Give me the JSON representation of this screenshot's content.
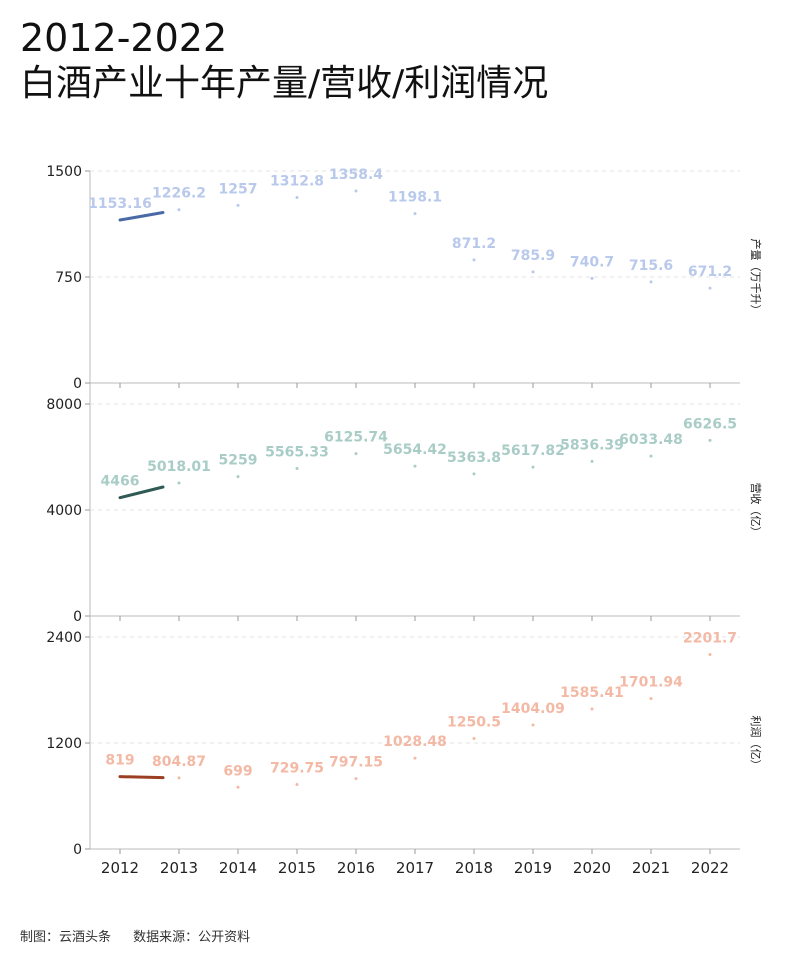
{
  "title": {
    "line1": "2012-2022",
    "line2": "白酒产业十年产量/营收/利润情况"
  },
  "footer": {
    "credit": "制图：云酒头条",
    "source": "数据来源：公开资料"
  },
  "chart_data": [
    {
      "type": "line",
      "ylabel": "产量（万千升）",
      "ylim": [
        0,
        1500
      ],
      "yticks": [
        "0",
        "750",
        "1500"
      ],
      "x": [
        "2012",
        "2013",
        "2014",
        "2015",
        "2016",
        "2017",
        "2018",
        "2019",
        "2020",
        "2021",
        "2022"
      ],
      "values": [
        1153.16,
        1226.2,
        1257,
        1312.8,
        1358.4,
        1198.1,
        871.2,
        785.9,
        740.7,
        715.6,
        671.2
      ],
      "labels": [
        "1153.16",
        "1226.2",
        "1257",
        "1312.8",
        "1358.4",
        "1198.1",
        "871.2",
        "785.9",
        "740.7",
        "715.6",
        "671.2"
      ],
      "line_color": "#4a6aa5",
      "label_color": "#b9c9ec",
      "grid": true
    },
    {
      "type": "line",
      "ylabel": "营收（亿）",
      "ylim": [
        0,
        8000
      ],
      "yticks": [
        "0",
        "4000",
        "8000"
      ],
      "x": [
        "2012",
        "2013",
        "2014",
        "2015",
        "2016",
        "2017",
        "2018",
        "2019",
        "2020",
        "2021",
        "2022"
      ],
      "values": [
        4466,
        5018.01,
        5259,
        5565.33,
        6125.74,
        5654.42,
        5363.8,
        5617.82,
        5836.39,
        6033.48,
        6626.5
      ],
      "labels": [
        "4466",
        "5018.01",
        "5259",
        "5565.33",
        "6125.74",
        "5654.42",
        "5363.8",
        "5617.82",
        "5836.39",
        "6033.48",
        "6626.5"
      ],
      "line_color": "#2f5a56",
      "label_color": "#a9cdc6",
      "grid": true
    },
    {
      "type": "line",
      "ylabel": "利润（亿）",
      "ylim": [
        0,
        2400
      ],
      "yticks": [
        "0",
        "1200",
        "2400"
      ],
      "x": [
        "2012",
        "2013",
        "2014",
        "2015",
        "2016",
        "2017",
        "2018",
        "2019",
        "2020",
        "2021",
        "2022"
      ],
      "values": [
        819,
        804.87,
        699,
        729.75,
        797.15,
        1028.48,
        1250.5,
        1404.09,
        1585.41,
        1701.94,
        2201.7
      ],
      "labels": [
        "819",
        "804.87",
        "699",
        "729.75",
        "797.15",
        "1028.48",
        "1250.5",
        "1404.09",
        "1585.41",
        "1701.94",
        "2201.7"
      ],
      "line_color": "#9c3e22",
      "label_color": "#f3b9a5",
      "grid": true
    }
  ]
}
